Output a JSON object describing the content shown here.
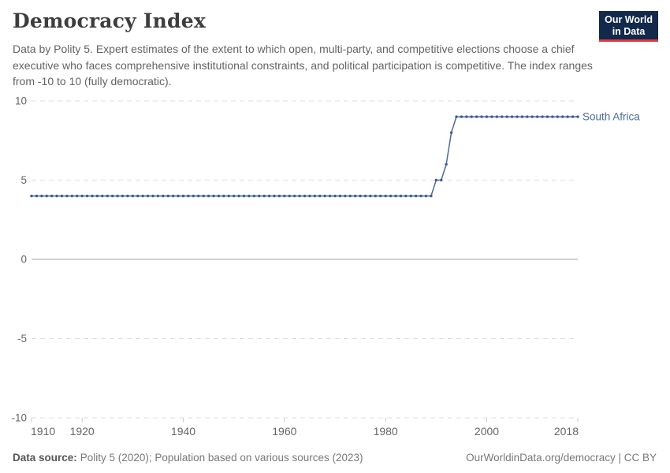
{
  "header": {
    "title": "Democracy Index",
    "subtitle": "Data by Polity 5. Expert estimates of the extent to which open, multi-party, and competitive elections choose a chief executive who faces comprehensive institutional constraints, and political participation is competitive. The index ranges from -10 to 10 (fully democratic).",
    "logo": {
      "line1": "Our World",
      "line2": "in Data",
      "bg_color": "#12294b",
      "accent_color": "#e0383e"
    }
  },
  "chart_data": {
    "type": "line",
    "title": "Democracy Index",
    "xlabel": "",
    "ylabel": "",
    "xlim": [
      1910,
      2018
    ],
    "ylim": [
      -10,
      10
    ],
    "xticks": [
      1910,
      1920,
      1940,
      1960,
      1980,
      2000,
      2018
    ],
    "yticks": [
      10,
      5,
      0,
      -5,
      -10
    ],
    "grid": "horizontal dashed, solid line at 0",
    "legend_position": "end-of-line entity label",
    "axis_color": "#666666",
    "gridline_color": "#dddddd",
    "zero_line_color": "#a1a1a1",
    "series": [
      {
        "name": "South Africa",
        "color": "#4c6a9c",
        "marker_color": "#3a5c99",
        "start_year": 1910,
        "end_year": 2018,
        "values": [
          4,
          4,
          4,
          4,
          4,
          4,
          4,
          4,
          4,
          4,
          4,
          4,
          4,
          4,
          4,
          4,
          4,
          4,
          4,
          4,
          4,
          4,
          4,
          4,
          4,
          4,
          4,
          4,
          4,
          4,
          4,
          4,
          4,
          4,
          4,
          4,
          4,
          4,
          4,
          4,
          4,
          4,
          4,
          4,
          4,
          4,
          4,
          4,
          4,
          4,
          4,
          4,
          4,
          4,
          4,
          4,
          4,
          4,
          4,
          4,
          4,
          4,
          4,
          4,
          4,
          4,
          4,
          4,
          4,
          4,
          4,
          4,
          4,
          4,
          4,
          4,
          4,
          4,
          4,
          4,
          5,
          5,
          6,
          8,
          9,
          9,
          9,
          9,
          9,
          9,
          9,
          9,
          9,
          9,
          9,
          9,
          9,
          9,
          9,
          9,
          9,
          9,
          9,
          9,
          9,
          9,
          9,
          9,
          9
        ]
      }
    ]
  },
  "footer": {
    "source_label": "Data source:",
    "source_text": "Polity 5 (2020); Population based on various sources (2023)",
    "credit": "OurWorldinData.org/democracy | CC BY"
  }
}
